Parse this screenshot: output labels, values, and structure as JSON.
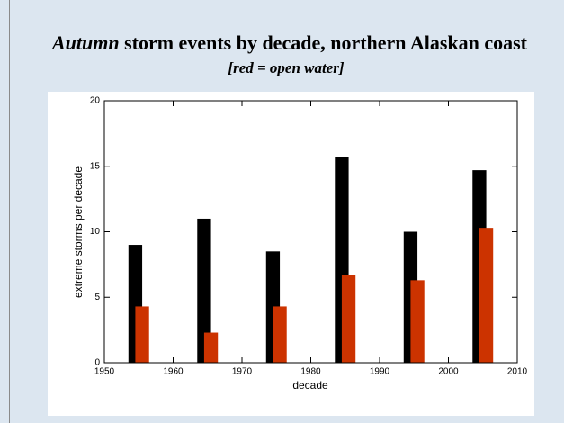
{
  "chart_data": {
    "type": "bar",
    "title": {
      "emphasis": "Autumn",
      "rest": "storm events by decade, northern Alaskan coast"
    },
    "subtitle": "[red = open water]",
    "xlabel": "decade",
    "ylabel": "extreme storms per decade",
    "series": [
      {
        "color": "#000000",
        "x": [
          1954.5,
          1964.5,
          1974.5,
          1984.5,
          1994.5,
          2004.5
        ],
        "values": [
          9,
          11,
          8.5,
          15.7,
          10,
          14.7
        ]
      },
      {
        "color": "#cc3300",
        "x": [
          1955.5,
          1965.5,
          1975.5,
          1985.5,
          1995.5,
          2005.5
        ],
        "values": [
          4.3,
          2.3,
          4.3,
          6.7,
          6.3,
          10.3
        ]
      }
    ],
    "xlim": [
      1950,
      2010
    ],
    "xticks": [
      1950,
      1960,
      1970,
      1980,
      1990,
      2000,
      2010
    ],
    "ylim": [
      0,
      20
    ],
    "yticks": [
      0,
      5,
      10,
      15,
      20
    ]
  }
}
